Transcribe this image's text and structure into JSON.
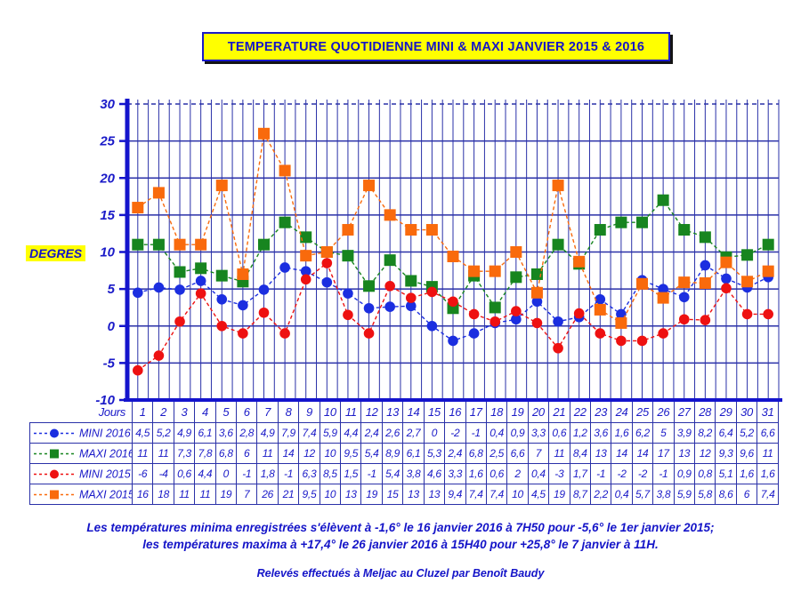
{
  "title": "TEMPERATURE QUOTIDIENNE MINI & MAXI JANVIER 2015 & 2016",
  "colors": {
    "text_blue": "#1a1ac8",
    "grid_blue": "#2a31a8",
    "axis_blue": "#1414cc",
    "highlight_yellow": "#ffff00",
    "mini_2016": "#1b2ee0",
    "maxi_2016": "#17851f",
    "mini_2015": "#ee1111",
    "maxi_2015": "#f96a0c"
  },
  "chart_data": {
    "type": "line",
    "title": "TEMPERATURE QUOTIDIENNE MINI & MAXI JANVIER 2015 & 2016",
    "xlabel": "Jours",
    "ylabel": "DEGRES",
    "ylim": [
      -10,
      30
    ],
    "yticks": [
      "30",
      "25",
      "20",
      "15",
      "10",
      "5",
      "0",
      "-5",
      "-10"
    ],
    "grid": true,
    "legend_position": "table-left",
    "x": [
      "1",
      "2",
      "3",
      "4",
      "5",
      "6",
      "7",
      "8",
      "9",
      "10",
      "11",
      "12",
      "13",
      "14",
      "15",
      "16",
      "17",
      "18",
      "19",
      "20",
      "21",
      "22",
      "23",
      "24",
      "25",
      "26",
      "27",
      "28",
      "29",
      "30",
      "31"
    ],
    "series": [
      {
        "name": "MINI 2016",
        "marker": "circle",
        "color": "#1b2ee0",
        "values": [
          "4,5",
          "5,2",
          "4,9",
          "6,1",
          "3,6",
          "2,8",
          "4,9",
          "7,9",
          "7,4",
          "5,9",
          "4,4",
          "2,4",
          "2,6",
          "2,7",
          "0",
          "-2",
          "-1",
          "0,4",
          "0,9",
          "3,3",
          "0,6",
          "1,2",
          "3,6",
          "1,6",
          "6,2",
          "5",
          "3,9",
          "8,2",
          "6,4",
          "5,2",
          "6,6"
        ]
      },
      {
        "name": "MAXI 2016",
        "marker": "square",
        "color": "#17851f",
        "values": [
          "11",
          "11",
          "7,3",
          "7,8",
          "6,8",
          "6",
          "11",
          "14",
          "12",
          "10",
          "9,5",
          "5,4",
          "8,9",
          "6,1",
          "5,3",
          "2,4",
          "6,8",
          "2,5",
          "6,6",
          "7",
          "11",
          "8,4",
          "13",
          "14",
          "14",
          "17",
          "13",
          "12",
          "9,3",
          "9,6",
          "11"
        ]
      },
      {
        "name": "MINI 2015",
        "marker": "circle",
        "color": "#ee1111",
        "values": [
          "-6",
          "-4",
          "0,6",
          "4,4",
          "0",
          "-1",
          "1,8",
          "-1",
          "6,3",
          "8,5",
          "1,5",
          "-1",
          "5,4",
          "3,8",
          "4,6",
          "3,3",
          "1,6",
          "0,6",
          "2",
          "0,4",
          "-3",
          "1,7",
          "-1",
          "-2",
          "-2",
          "-1",
          "0,9",
          "0,8",
          "5,1",
          "1,6",
          "1,6"
        ]
      },
      {
        "name": "MAXI 2015",
        "marker": "square",
        "color": "#f96a0c",
        "values": [
          "16",
          "18",
          "11",
          "11",
          "19",
          "7",
          "26",
          "21",
          "9,5",
          "10",
          "13",
          "19",
          "15",
          "13",
          "13",
          "9,4",
          "7,4",
          "7,4",
          "10",
          "4,5",
          "19",
          "8,7",
          "2,2",
          "0,4",
          "5,7",
          "3,8",
          "5,9",
          "5,8",
          "8,6",
          "6",
          "7,4"
        ]
      }
    ]
  },
  "footnotes": {
    "line1": "Les températures minima enregistrées s'élèvent à -1,6° le 16 janvier 2016 à 7H50 pour -5,6° le 1er janvier 2015;",
    "line2": "les températures maxima à +17,4° le 26 janvier 2016 à 15H40 pour +25,8° le 7 janvier à 11H.",
    "credit": "Relevés effectués à Meljac au Cluzel par Benoît Baudy"
  }
}
